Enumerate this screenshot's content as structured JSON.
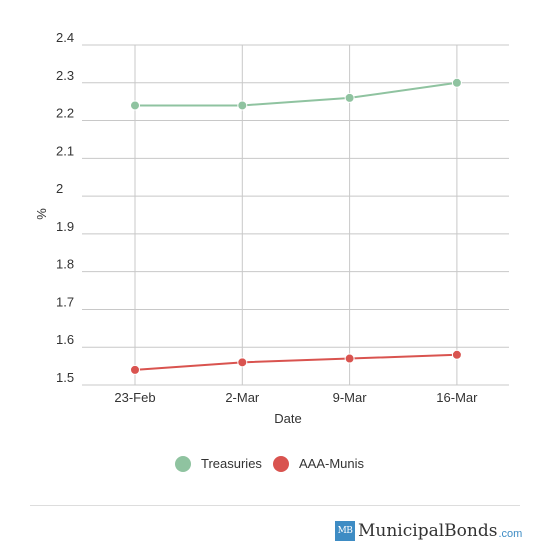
{
  "chart_data": {
    "type": "line",
    "categories": [
      "23-Feb",
      "2-Mar",
      "9-Mar",
      "16-Mar"
    ],
    "series": [
      {
        "name": "Treasuries",
        "color": "#8fc3a0",
        "values": [
          2.24,
          2.24,
          2.26,
          2.3
        ]
      },
      {
        "name": "AAA-Munis",
        "color": "#d9534f",
        "values": [
          1.54,
          1.56,
          1.57,
          1.58
        ]
      }
    ],
    "xlabel": "Date",
    "ylabel": "%",
    "ylim": [
      1.5,
      2.4
    ],
    "yticks": [
      {
        "value": 1.5,
        "label": "1.5"
      },
      {
        "value": 1.6,
        "label": "1.6"
      },
      {
        "value": 1.7,
        "label": "1.7"
      },
      {
        "value": 1.8,
        "label": "1.8"
      },
      {
        "value": 1.9,
        "label": "1.9"
      },
      {
        "value": 2.0,
        "label": "2"
      },
      {
        "value": 2.1,
        "label": "2.1"
      },
      {
        "value": 2.2,
        "label": "2.2"
      },
      {
        "value": 2.3,
        "label": "2.3"
      },
      {
        "value": 2.4,
        "label": "2.4"
      }
    ],
    "grid": true,
    "legend_position": "bottom-center"
  },
  "branding": {
    "logo_mark": "MB",
    "logo_text": "MunicipalBonds",
    "logo_suffix": ".com"
  }
}
